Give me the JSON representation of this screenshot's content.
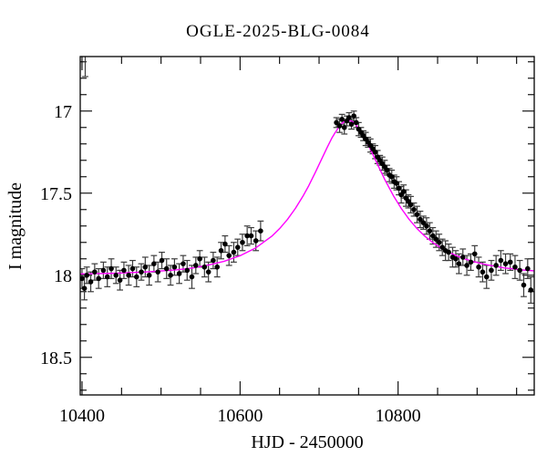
{
  "title": "OGLE-2025-BLG-0084",
  "chart_data": {
    "type": "scatter",
    "title": "OGLE-2025-BLG-0084",
    "xlabel": "HJD - 2450000",
    "ylabel": "I magnitude",
    "x_range": [
      10397.7,
      10972.3
    ],
    "y_range": [
      18.729,
      16.668
    ],
    "y_axis_inverted": true,
    "grid": false,
    "legend": "none",
    "x_major_ticks": [
      10400,
      10600,
      10800
    ],
    "x_major_tick_labels": [
      "10400",
      "10600",
      "10800"
    ],
    "x_minor_tick_step": 50,
    "y_major_ticks": [
      17,
      17.5,
      18,
      18.5
    ],
    "y_major_tick_labels": [
      "17",
      "17.5",
      "18",
      "18.5"
    ],
    "y_minor_tick_step": 0.1,
    "colors": {
      "model_curve": "#ff00ff",
      "data_marker": "#000000",
      "error_bar": "#3c3c3c",
      "axis": "#000000",
      "background": "#ffffff"
    },
    "series": [
      {
        "name": "I-band photometry",
        "type": "scatter_errorbar",
        "points_format": [
          "hjd_minus_2450000",
          "I_magnitude",
          "mag_error"
        ],
        "points": [
          [
            10404,
            16.63,
            0.16
          ],
          [
            10400,
            18.02,
            0.06
          ],
          [
            10403,
            18.08,
            0.07
          ],
          [
            10406,
            18.0,
            0.05
          ],
          [
            10411,
            18.04,
            0.06
          ],
          [
            10416,
            17.98,
            0.05
          ],
          [
            10421,
            18.02,
            0.06
          ],
          [
            10427,
            17.97,
            0.05
          ],
          [
            10432,
            18.01,
            0.06
          ],
          [
            10437,
            17.96,
            0.06
          ],
          [
            10443,
            18.0,
            0.05
          ],
          [
            10448,
            18.03,
            0.06
          ],
          [
            10453,
            17.97,
            0.05
          ],
          [
            10459,
            18.0,
            0.06
          ],
          [
            10464,
            17.96,
            0.05
          ],
          [
            10469,
            18.01,
            0.06
          ],
          [
            10475,
            17.98,
            0.05
          ],
          [
            10480,
            17.95,
            0.06
          ],
          [
            10485,
            18.0,
            0.06
          ],
          [
            10491,
            17.93,
            0.05
          ],
          [
            10496,
            17.98,
            0.06
          ],
          [
            10501,
            17.91,
            0.05
          ],
          [
            10507,
            17.96,
            0.06
          ],
          [
            10512,
            18.0,
            0.06
          ],
          [
            10517,
            17.95,
            0.05
          ],
          [
            10523,
            17.99,
            0.06
          ],
          [
            10528,
            17.93,
            0.05
          ],
          [
            10533,
            17.97,
            0.06
          ],
          [
            10539,
            18.01,
            0.07
          ],
          [
            10544,
            17.94,
            0.05
          ],
          [
            10549,
            17.9,
            0.05
          ],
          [
            10555,
            17.95,
            0.06
          ],
          [
            10560,
            17.98,
            0.06
          ],
          [
            10566,
            17.91,
            0.05
          ],
          [
            10571,
            17.95,
            0.06
          ],
          [
            10576,
            17.85,
            0.05
          ],
          [
            10581,
            17.81,
            0.05
          ],
          [
            10586,
            17.88,
            0.06
          ],
          [
            10592,
            17.86,
            0.06
          ],
          [
            10597,
            17.83,
            0.05
          ],
          [
            10603,
            17.8,
            0.05
          ],
          [
            10609,
            17.76,
            0.06
          ],
          [
            10614,
            17.76,
            0.05
          ],
          [
            10620,
            17.79,
            0.06
          ],
          [
            10626,
            17.73,
            0.06
          ],
          [
            10722,
            17.07,
            0.03
          ],
          [
            10726,
            17.09,
            0.04
          ],
          [
            10729,
            17.05,
            0.03
          ],
          [
            10732,
            17.1,
            0.04
          ],
          [
            10735,
            17.06,
            0.03
          ],
          [
            10738,
            17.04,
            0.03
          ],
          [
            10741,
            17.08,
            0.03
          ],
          [
            10744,
            17.03,
            0.03
          ],
          [
            10747,
            17.07,
            0.03
          ],
          [
            10750,
            17.11,
            0.04
          ],
          [
            10753,
            17.13,
            0.03
          ],
          [
            10756,
            17.15,
            0.03
          ],
          [
            10759,
            17.17,
            0.04
          ],
          [
            10762,
            17.19,
            0.03
          ],
          [
            10765,
            17.21,
            0.04
          ],
          [
            10768,
            17.23,
            0.03
          ],
          [
            10771,
            17.25,
            0.04
          ],
          [
            10774,
            17.28,
            0.04
          ],
          [
            10777,
            17.3,
            0.03
          ],
          [
            10780,
            17.32,
            0.04
          ],
          [
            10783,
            17.34,
            0.04
          ],
          [
            10786,
            17.36,
            0.03
          ],
          [
            10789,
            17.39,
            0.04
          ],
          [
            10792,
            17.4,
            0.04
          ],
          [
            10795,
            17.43,
            0.04
          ],
          [
            10798,
            17.44,
            0.04
          ],
          [
            10801,
            17.47,
            0.04
          ],
          [
            10804,
            17.51,
            0.05
          ],
          [
            10807,
            17.49,
            0.04
          ],
          [
            10810,
            17.53,
            0.05
          ],
          [
            10813,
            17.55,
            0.04
          ],
          [
            10816,
            17.57,
            0.05
          ],
          [
            10820,
            17.6,
            0.04
          ],
          [
            10824,
            17.63,
            0.05
          ],
          [
            10828,
            17.66,
            0.05
          ],
          [
            10832,
            17.68,
            0.04
          ],
          [
            10836,
            17.7,
            0.05
          ],
          [
            10840,
            17.73,
            0.05
          ],
          [
            10844,
            17.76,
            0.05
          ],
          [
            10848,
            17.78,
            0.05
          ],
          [
            10852,
            17.8,
            0.05
          ],
          [
            10856,
            17.83,
            0.05
          ],
          [
            10860,
            17.85,
            0.06
          ],
          [
            10864,
            17.86,
            0.05
          ],
          [
            10869,
            17.89,
            0.06
          ],
          [
            10873,
            17.9,
            0.05
          ],
          [
            10877,
            17.93,
            0.06
          ],
          [
            10882,
            17.89,
            0.05
          ],
          [
            10887,
            17.94,
            0.06
          ],
          [
            10892,
            17.92,
            0.05
          ],
          [
            10897,
            17.87,
            0.05
          ],
          [
            10902,
            17.95,
            0.06
          ],
          [
            10907,
            17.98,
            0.06
          ],
          [
            10912,
            18.01,
            0.07
          ],
          [
            10918,
            17.97,
            0.06
          ],
          [
            10924,
            17.94,
            0.06
          ],
          [
            10930,
            17.91,
            0.06
          ],
          [
            10936,
            17.93,
            0.06
          ],
          [
            10942,
            17.92,
            0.05
          ],
          [
            10948,
            17.95,
            0.07
          ],
          [
            10954,
            17.97,
            0.06
          ],
          [
            10959,
            18.06,
            0.07
          ],
          [
            10964,
            17.96,
            0.06
          ],
          [
            10968,
            18.09,
            0.08
          ]
        ]
      },
      {
        "name": "microlensing model",
        "type": "line",
        "points_format": [
          "hjd_minus_2450000",
          "I_magnitude"
        ],
        "points": [
          [
            10397,
            17.992
          ],
          [
            10420,
            17.99
          ],
          [
            10440,
            17.988
          ],
          [
            10460,
            17.984
          ],
          [
            10480,
            17.98
          ],
          [
            10500,
            17.974
          ],
          [
            10520,
            17.967
          ],
          [
            10540,
            17.956
          ],
          [
            10560,
            17.938
          ],
          [
            10580,
            17.915
          ],
          [
            10600,
            17.881
          ],
          [
            10620,
            17.833
          ],
          [
            10640,
            17.763
          ],
          [
            10650,
            17.716
          ],
          [
            10660,
            17.66
          ],
          [
            10670,
            17.593
          ],
          [
            10680,
            17.515
          ],
          [
            10687,
            17.454
          ],
          [
            10695,
            17.376
          ],
          [
            10702,
            17.305
          ],
          [
            10710,
            17.224
          ],
          [
            10716,
            17.166
          ],
          [
            10720,
            17.134
          ],
          [
            10724,
            17.105
          ],
          [
            10728,
            17.078
          ],
          [
            10733,
            17.061
          ],
          [
            10737,
            17.055
          ],
          [
            10741,
            17.061
          ],
          [
            10744,
            17.069
          ],
          [
            10750,
            17.105
          ],
          [
            10754,
            17.134
          ],
          [
            10759,
            17.175
          ],
          [
            10764,
            17.224
          ],
          [
            10769,
            17.274
          ],
          [
            10774,
            17.325
          ],
          [
            10784,
            17.425
          ],
          [
            10794,
            17.515
          ],
          [
            10804,
            17.593
          ],
          [
            10814,
            17.66
          ],
          [
            10824,
            17.716
          ],
          [
            10834,
            17.763
          ],
          [
            10844,
            17.801
          ],
          [
            10854,
            17.833
          ],
          [
            10864,
            17.86
          ],
          [
            10874,
            17.881
          ],
          [
            10884,
            17.9
          ],
          [
            10894,
            17.915
          ],
          [
            10904,
            17.927
          ],
          [
            10914,
            17.938
          ],
          [
            10924,
            17.946
          ],
          [
            10934,
            17.955
          ],
          [
            10944,
            17.96
          ],
          [
            10954,
            17.967
          ],
          [
            10964,
            17.97
          ],
          [
            10972,
            17.973
          ]
        ]
      }
    ]
  }
}
